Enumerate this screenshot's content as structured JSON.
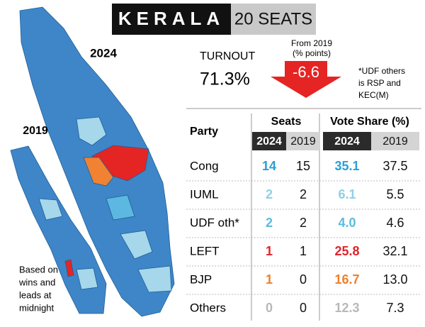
{
  "header": {
    "title": "KERALA",
    "seats": "20 SEATS"
  },
  "map": {
    "label_2024": "2024",
    "label_2019": "2019",
    "note": [
      "Based on",
      "wins and",
      "leads at",
      "midnight"
    ]
  },
  "turnout": {
    "label": "TURNOUT",
    "value": "71.3%",
    "change_label": [
      "From 2019",
      "(% points)"
    ],
    "change": "-6.6"
  },
  "udf_note": [
    "*UDF others",
    "is RSP and",
    "KEC(M)"
  ],
  "table": {
    "party_header": "Party",
    "seats_header": "Seats",
    "vote_header": "Vote Share (%)",
    "years": [
      "2024",
      "2019",
      "2024",
      "2019"
    ],
    "rows": [
      {
        "party": "Cong",
        "seats_2024": "14",
        "seats_2019": "15",
        "vote_2024": "35.1",
        "vote_2019": "37.5",
        "color": "#2a9fd6"
      },
      {
        "party": "IUML",
        "seats_2024": "2",
        "seats_2019": "2",
        "vote_2024": "6.1",
        "vote_2019": "5.5",
        "color": "#8fd0e6"
      },
      {
        "party": "UDF oth*",
        "seats_2024": "2",
        "seats_2019": "2",
        "vote_2024": "4.0",
        "vote_2019": "4.6",
        "color": "#5bbbe0"
      },
      {
        "party": "LEFT",
        "seats_2024": "1",
        "seats_2019": "1",
        "vote_2024": "25.8",
        "vote_2019": "32.1",
        "color": "#e0232b"
      },
      {
        "party": "BJP",
        "seats_2024": "1",
        "seats_2019": "0",
        "vote_2024": "16.7",
        "vote_2019": "13.0",
        "color": "#f07f2a"
      },
      {
        "party": "Others",
        "seats_2024": "0",
        "seats_2019": "0",
        "vote_2024": "12.3",
        "vote_2019": "7.3",
        "color": "#b8b8b8"
      }
    ]
  }
}
